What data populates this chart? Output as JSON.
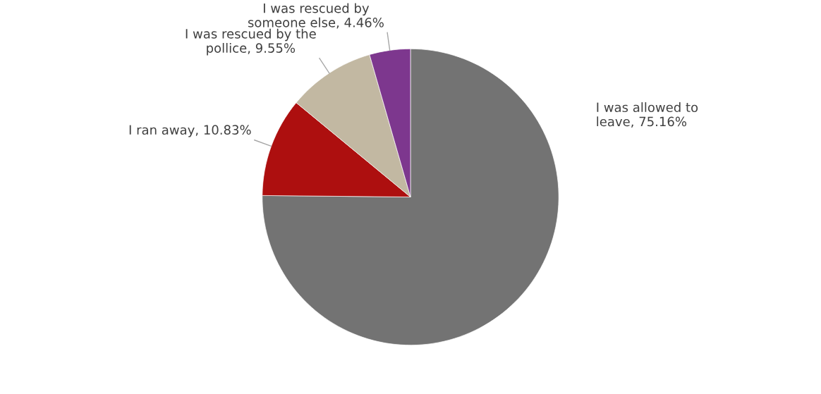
{
  "chart_data": {
    "type": "pie",
    "categories": [
      "I was allowed to\nleave",
      "I ran away",
      "I was rescued by the\npollice",
      "I was rescued by\nsomeone else"
    ],
    "values": [
      75.16,
      10.83,
      9.55,
      4.46
    ],
    "value_labels": [
      "75.16%",
      "10.83%",
      "9.55%",
      "4.46%"
    ],
    "colors": [
      "#737373",
      "#ad0f0f",
      "#c2b8a2",
      "#7d378e"
    ],
    "legend": false
  }
}
